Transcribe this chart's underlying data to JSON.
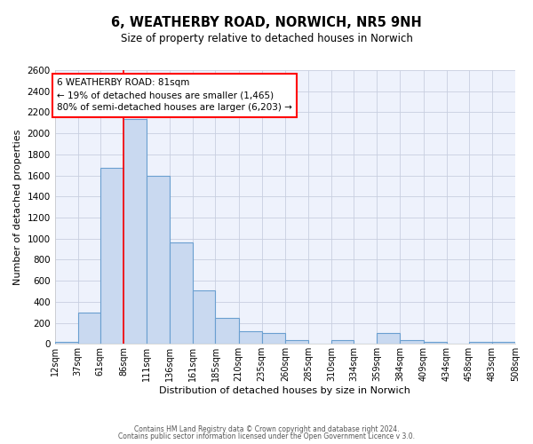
{
  "title": "6, WEATHERBY ROAD, NORWICH, NR5 9NH",
  "subtitle": "Size of property relative to detached houses in Norwich",
  "xlabel": "Distribution of detached houses by size in Norwich",
  "ylabel": "Number of detached properties",
  "bar_color": "#c9d9f0",
  "bar_edge_color": "#6a9fd0",
  "bins": [
    12,
    37,
    61,
    86,
    111,
    136,
    161,
    185,
    210,
    235,
    260,
    285,
    310,
    334,
    359,
    384,
    409,
    434,
    458,
    483,
    508
  ],
  "values": [
    20,
    300,
    1670,
    2140,
    1600,
    965,
    505,
    250,
    120,
    100,
    35,
    0,
    35,
    0,
    100,
    40,
    20,
    0,
    20,
    20
  ],
  "tick_labels": [
    "12sqm",
    "37sqm",
    "61sqm",
    "86sqm",
    "111sqm",
    "136sqm",
    "161sqm",
    "185sqm",
    "210sqm",
    "235sqm",
    "260sqm",
    "285sqm",
    "310sqm",
    "334sqm",
    "359sqm",
    "384sqm",
    "409sqm",
    "434sqm",
    "458sqm",
    "483sqm",
    "508sqm"
  ],
  "ylim": [
    0,
    2600
  ],
  "yticks": [
    0,
    200,
    400,
    600,
    800,
    1000,
    1200,
    1400,
    1600,
    1800,
    2000,
    2200,
    2400,
    2600
  ],
  "red_line_x": 86,
  "annotation_title": "6 WEATHERBY ROAD: 81sqm",
  "annotation_line1": "← 19% of detached houses are smaller (1,465)",
  "annotation_line2": "80% of semi-detached houses are larger (6,203) →",
  "footer1": "Contains HM Land Registry data © Crown copyright and database right 2024.",
  "footer2": "Contains public sector information licensed under the Open Government Licence v 3.0.",
  "background_color": "#eef2fc"
}
